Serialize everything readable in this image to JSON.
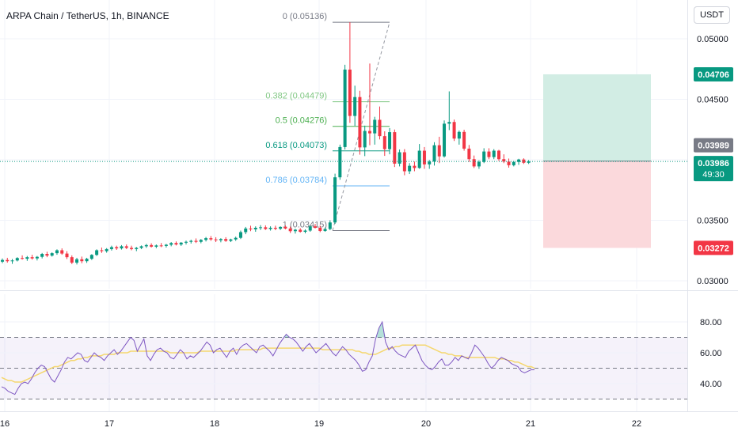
{
  "header": {
    "title": "ARPA Chain / TetherUS, 1h, BINANCE"
  },
  "currency_button": "USDT",
  "price_axis": {
    "ticks": [
      "0.05000",
      "0.04500",
      "0.03500",
      "0.03000"
    ]
  },
  "price_tags": {
    "target": "0.04706",
    "entry": "0.03989",
    "last": "0.03986",
    "countdown": "49:30",
    "stop": "0.03272"
  },
  "fib_labels": [
    {
      "text": "0 (0.05136)",
      "color": "#787b86"
    },
    {
      "text": "0.382 (0.04479)",
      "color": "#81c784"
    },
    {
      "text": "0.5 (0.04276)",
      "color": "#4caf50"
    },
    {
      "text": "0.618 (0.04073)",
      "color": "#089981"
    },
    {
      "text": "0.786 (0.03784)",
      "color": "#64b5f6"
    },
    {
      "text": "1 (0.03415)",
      "color": "#787b86"
    }
  ],
  "rsi_axis": {
    "ticks": [
      "80.00",
      "60.00",
      "40.00"
    ]
  },
  "time_axis": {
    "labels": [
      "16",
      "17",
      "18",
      "19",
      "20",
      "21",
      "22"
    ]
  },
  "colors": {
    "up": "#089981",
    "down": "#f23645",
    "rsi_line": "#7e57c2",
    "rsi_ma": "#f5d76e",
    "target_zone": "#d2ede4",
    "stop_zone": "#fbd9dc"
  },
  "chart_data": [
    {
      "type": "candlestick",
      "title": "ARPA Chain / TetherUS, 1h, BINANCE",
      "ylim": [
        0.0295,
        0.0525
      ],
      "x_categories": [
        "16",
        "17",
        "18",
        "19",
        "20",
        "21",
        "22"
      ],
      "candles": [
        [
          0.03158,
          0.03185,
          0.03145,
          0.03172
        ],
        [
          0.03172,
          0.0319,
          0.0315,
          0.03162
        ],
        [
          0.03162,
          0.0318,
          0.0314,
          0.03168
        ],
        [
          0.03168,
          0.03195,
          0.0316,
          0.03188
        ],
        [
          0.03188,
          0.0321,
          0.03175,
          0.03182
        ],
        [
          0.03182,
          0.03205,
          0.03165,
          0.03195
        ],
        [
          0.03195,
          0.03215,
          0.03175,
          0.03185
        ],
        [
          0.03185,
          0.03205,
          0.03168,
          0.03198
        ],
        [
          0.03198,
          0.0323,
          0.03185,
          0.03222
        ],
        [
          0.03222,
          0.0324,
          0.03195,
          0.03208
        ],
        [
          0.03208,
          0.03235,
          0.032,
          0.03228
        ],
        [
          0.03228,
          0.0326,
          0.03215,
          0.03252
        ],
        [
          0.03252,
          0.03268,
          0.03215,
          0.03225
        ],
        [
          0.03225,
          0.03245,
          0.0318,
          0.03195
        ],
        [
          0.03195,
          0.0321,
          0.03138,
          0.0315
        ],
        [
          0.0315,
          0.0319,
          0.03135,
          0.03178
        ],
        [
          0.03178,
          0.032,
          0.03145,
          0.03162
        ],
        [
          0.03162,
          0.0319,
          0.03148,
          0.03182
        ],
        [
          0.03182,
          0.0322,
          0.03172,
          0.03214
        ],
        [
          0.03214,
          0.0326,
          0.03205,
          0.03252
        ],
        [
          0.03252,
          0.03275,
          0.0323,
          0.03245
        ],
        [
          0.03245,
          0.0327,
          0.03232,
          0.03262
        ],
        [
          0.03262,
          0.0329,
          0.0325,
          0.03278
        ],
        [
          0.03278,
          0.0329,
          0.03255,
          0.03268
        ],
        [
          0.03268,
          0.03295,
          0.03258,
          0.03285
        ],
        [
          0.03285,
          0.033,
          0.03262,
          0.03272
        ],
        [
          0.03272,
          0.0329,
          0.03252,
          0.03262
        ],
        [
          0.03262,
          0.0328,
          0.03245,
          0.03272
        ],
        [
          0.03272,
          0.03292,
          0.03262,
          0.03285
        ],
        [
          0.03285,
          0.03305,
          0.03272,
          0.03295
        ],
        [
          0.03295,
          0.0331,
          0.03275,
          0.03282
        ],
        [
          0.03282,
          0.033,
          0.0327,
          0.03292
        ],
        [
          0.03292,
          0.03312,
          0.03278,
          0.03288
        ],
        [
          0.03288,
          0.03305,
          0.03275,
          0.03298
        ],
        [
          0.03298,
          0.0332,
          0.03285,
          0.03312
        ],
        [
          0.03312,
          0.03325,
          0.03292,
          0.033
        ],
        [
          0.033,
          0.0332,
          0.03288,
          0.03315
        ],
        [
          0.03315,
          0.03332,
          0.033,
          0.03322
        ],
        [
          0.03322,
          0.0334,
          0.03308,
          0.0333
        ],
        [
          0.0333,
          0.0335,
          0.03312,
          0.03322
        ],
        [
          0.03322,
          0.03345,
          0.0331,
          0.03338
        ],
        [
          0.03338,
          0.03362,
          0.03325,
          0.03352
        ],
        [
          0.03352,
          0.0337,
          0.0333,
          0.03342
        ],
        [
          0.03342,
          0.0336,
          0.0332,
          0.03335
        ],
        [
          0.03335,
          0.03352,
          0.03318,
          0.03345
        ],
        [
          0.03345,
          0.0336,
          0.03322,
          0.0333
        ],
        [
          0.0333,
          0.03348,
          0.0332,
          0.03342
        ],
        [
          0.03342,
          0.03365,
          0.0333,
          0.03355
        ],
        [
          0.03355,
          0.03415,
          0.03345,
          0.03402
        ],
        [
          0.03402,
          0.03445,
          0.03385,
          0.03432
        ],
        [
          0.03432,
          0.03455,
          0.0341,
          0.03425
        ],
        [
          0.03425,
          0.0345,
          0.03405,
          0.03438
        ],
        [
          0.03438,
          0.0346,
          0.0342,
          0.03442
        ],
        [
          0.03442,
          0.03458,
          0.0342,
          0.03428
        ],
        [
          0.03428,
          0.0345,
          0.03415,
          0.03438
        ],
        [
          0.03438,
          0.03455,
          0.03418,
          0.0343
        ],
        [
          0.0343,
          0.0345,
          0.0342,
          0.03445
        ],
        [
          0.03445,
          0.03458,
          0.03425,
          0.03432
        ],
        [
          0.03432,
          0.03448,
          0.03395,
          0.0341
        ],
        [
          0.0341,
          0.0343,
          0.0339,
          0.03422
        ],
        [
          0.03422,
          0.03435,
          0.03398,
          0.03405
        ],
        [
          0.03405,
          0.03425,
          0.03392,
          0.03415
        ],
        [
          0.03415,
          0.0346,
          0.03405,
          0.0345
        ],
        [
          0.0345,
          0.0347,
          0.03432,
          0.03438
        ],
        [
          0.03438,
          0.03455,
          0.03402,
          0.03412
        ],
        [
          0.03412,
          0.0344,
          0.03405,
          0.03428
        ],
        [
          0.03428,
          0.035,
          0.03418,
          0.03482
        ],
        [
          0.03482,
          0.03885,
          0.0347,
          0.03855
        ],
        [
          0.03855,
          0.04125,
          0.03835,
          0.04105
        ],
        [
          0.04105,
          0.04785,
          0.04085,
          0.04745
        ],
        [
          0.04745,
          0.05136,
          0.04305,
          0.04362
        ],
        [
          0.04362,
          0.04612,
          0.0428,
          0.04518
        ],
        [
          0.04518,
          0.0457,
          0.04042,
          0.04102
        ],
        [
          0.04102,
          0.04282,
          0.0403,
          0.04238
        ],
        [
          0.04238,
          0.04795,
          0.0412,
          0.04218
        ],
        [
          0.04218,
          0.04355,
          0.04125,
          0.0433
        ],
        [
          0.0433,
          0.0444,
          0.04168,
          0.04195
        ],
        [
          0.04195,
          0.04235,
          0.04032,
          0.04088
        ],
        [
          0.04088,
          0.04262,
          0.04045,
          0.04228
        ],
        [
          0.04228,
          0.0425,
          0.0394,
          0.03968
        ],
        [
          0.03968,
          0.04085,
          0.03945,
          0.04062
        ],
        [
          0.04062,
          0.04088,
          0.03872,
          0.03905
        ],
        [
          0.03905,
          0.03972,
          0.03882,
          0.0395
        ],
        [
          0.0395,
          0.03985,
          0.03905,
          0.03932
        ],
        [
          0.03932,
          0.0413,
          0.03925,
          0.04075
        ],
        [
          0.04075,
          0.04105,
          0.03925,
          0.03962
        ],
        [
          0.03962,
          0.03998,
          0.03925,
          0.03985
        ],
        [
          0.03985,
          0.04145,
          0.03952,
          0.0412
        ],
        [
          0.0412,
          0.0419,
          0.03972,
          0.04028
        ],
        [
          0.04028,
          0.04325,
          0.04018,
          0.04298
        ],
        [
          0.04298,
          0.04565,
          0.04245,
          0.04312
        ],
        [
          0.04312,
          0.04332,
          0.04155,
          0.04175
        ],
        [
          0.04175,
          0.04242,
          0.04125,
          0.0423
        ],
        [
          0.0423,
          0.04248,
          0.04075,
          0.04092
        ],
        [
          0.04092,
          0.04122,
          0.03982,
          0.04005
        ],
        [
          0.04005,
          0.04035,
          0.03932,
          0.03945
        ],
        [
          0.03945,
          0.03995,
          0.03925,
          0.03982
        ],
        [
          0.03982,
          0.04095,
          0.03972,
          0.04068
        ],
        [
          0.04068,
          0.04095,
          0.04005,
          0.04022
        ],
        [
          0.04022,
          0.04088,
          0.04005,
          0.04075
        ],
        [
          0.04075,
          0.04082,
          0.0399,
          0.04005
        ],
        [
          0.04005,
          0.04045,
          0.03972,
          0.03985
        ],
        [
          0.03985,
          0.0401,
          0.03935,
          0.03955
        ],
        [
          0.03955,
          0.0399,
          0.03945,
          0.03982
        ],
        [
          0.03982,
          0.04008,
          0.03958,
          0.04002
        ],
        [
          0.04002,
          0.04012,
          0.03965,
          0.03975
        ],
        [
          0.03975,
          0.03998,
          0.03965,
          0.03986
        ]
      ],
      "fibonacci": [
        {
          "level": 0,
          "price": 0.05136
        },
        {
          "level": 0.382,
          "price": 0.04479
        },
        {
          "level": 0.5,
          "price": 0.04276
        },
        {
          "level": 0.618,
          "price": 0.04073
        },
        {
          "level": 0.786,
          "price": 0.03784
        },
        {
          "level": 1,
          "price": 0.03415
        }
      ],
      "position": {
        "entry": 0.03989,
        "target": 0.04706,
        "stop": 0.03272
      },
      "last_price": 0.03986
    },
    {
      "type": "line",
      "ylim": [
        30,
        90
      ],
      "bands": [
        70,
        50,
        30
      ],
      "rsi": [
        38,
        37,
        35,
        34,
        33,
        37,
        40,
        41,
        40,
        43,
        47,
        50,
        52,
        51,
        47,
        43,
        41,
        45,
        49,
        54,
        57,
        56,
        58,
        60,
        59,
        55,
        54,
        57,
        60,
        58,
        57,
        55,
        58,
        60,
        62,
        59,
        61,
        64,
        67,
        70,
        68,
        61,
        65,
        69,
        58,
        55,
        59,
        62,
        63,
        61,
        60,
        57,
        56,
        59,
        62,
        60,
        56,
        58,
        57,
        59,
        61,
        64,
        67,
        65,
        60,
        62,
        63,
        60,
        57,
        61,
        63,
        59,
        63,
        65,
        66,
        64,
        62,
        60,
        64,
        65,
        63,
        61,
        58,
        62,
        66,
        69,
        72,
        70,
        69,
        67,
        64,
        61,
        64,
        66,
        63,
        60,
        62,
        64,
        66,
        63,
        60,
        58,
        61,
        64,
        62,
        59,
        57,
        55,
        52,
        48,
        49,
        54,
        58,
        69,
        76,
        80,
        67,
        62,
        64,
        61,
        59,
        58,
        57,
        61,
        63,
        65,
        60,
        55,
        52,
        50,
        49,
        51,
        54,
        56,
        52,
        52,
        54,
        57,
        55,
        58,
        57,
        56,
        60,
        65,
        63,
        60,
        57,
        53,
        50,
        52,
        55,
        57,
        56,
        55,
        53,
        52,
        51,
        48,
        47,
        48,
        49,
        49
      ],
      "rsi_ma": [
        44,
        43,
        42,
        42,
        41,
        41,
        41,
        42,
        43,
        44,
        45,
        46,
        47,
        48,
        49,
        50,
        51,
        51,
        52,
        53,
        54,
        55,
        55,
        56,
        56,
        57,
        57,
        58,
        58,
        58,
        58,
        59,
        59,
        59,
        59,
        60,
        60,
        60,
        60,
        61,
        61,
        61,
        61,
        61,
        61,
        61,
        61,
        61,
        61,
        61,
        61,
        60,
        60,
        60,
        60,
        60,
        60,
        60,
        60,
        60,
        61,
        61,
        61,
        61,
        61,
        61,
        61,
        61,
        61,
        61,
        61,
        62,
        62,
        62,
        62,
        62,
        62,
        62,
        62,
        63,
        63,
        63,
        63,
        63,
        63,
        63,
        63,
        63,
        63,
        63,
        63,
        63,
        63,
        63,
        63,
        63,
        63,
        62,
        62,
        62,
        62,
        62,
        62,
        62,
        62,
        62,
        62,
        61,
        61,
        60,
        60,
        59,
        59,
        59,
        60,
        61,
        62,
        63,
        63,
        64,
        64,
        65,
        65,
        65,
        65,
        65,
        65,
        65,
        65,
        64,
        63,
        62,
        61,
        60,
        60,
        59,
        59,
        58,
        58,
        58,
        57,
        57,
        57,
        57,
        57,
        57,
        57,
        57,
        57,
        57,
        56,
        56,
        56,
        55,
        55,
        54,
        54,
        53,
        52,
        51,
        51,
        50
      ]
    }
  ]
}
